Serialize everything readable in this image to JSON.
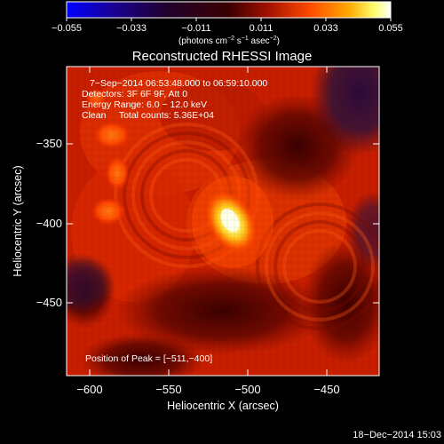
{
  "colorbar": {
    "tick_labels": [
      "−0.055",
      "−0.033",
      "−0.011",
      "0.011",
      "0.033",
      "0.055"
    ],
    "units_main": "(photons cm",
    "units_exp1": "−2",
    "units_mid": " s",
    "units_exp2": "−1",
    "units_asec": " asec",
    "units_exp3": "−2",
    "units_close": ")",
    "colors": [
      "#0000ff",
      "#1a0080",
      "#000000",
      "#5a0000",
      "#b01500",
      "#ff5500",
      "#ffb000",
      "#ffff80",
      "#ffffff"
    ]
  },
  "image": {
    "title": "Reconstructed RHESSI Image",
    "info_lines": [
      "7−Sep−2014 06:53:48.000 to 06:59:10.000",
      "Detectors: 3F 6F 9F, Att 0",
      "Energy Range: 6.0 − 12.0 keV",
      "Clean     Total counts: 5.36E+04"
    ],
    "peak_label": "Position of Peak = [−511,−400]",
    "xlabel": "Heliocentric X (arcsec)",
    "ylabel": "Heliocentric Y (arcsec)",
    "x_ticks": [
      "−600",
      "−550",
      "−500",
      "−450"
    ],
    "y_ticks": [
      "−350",
      "−400",
      "−450"
    ],
    "peak_x_arcsec": -511,
    "peak_y_arcsec": -400
  },
  "footer": {
    "date": "18−Dec−2014 15:03"
  }
}
